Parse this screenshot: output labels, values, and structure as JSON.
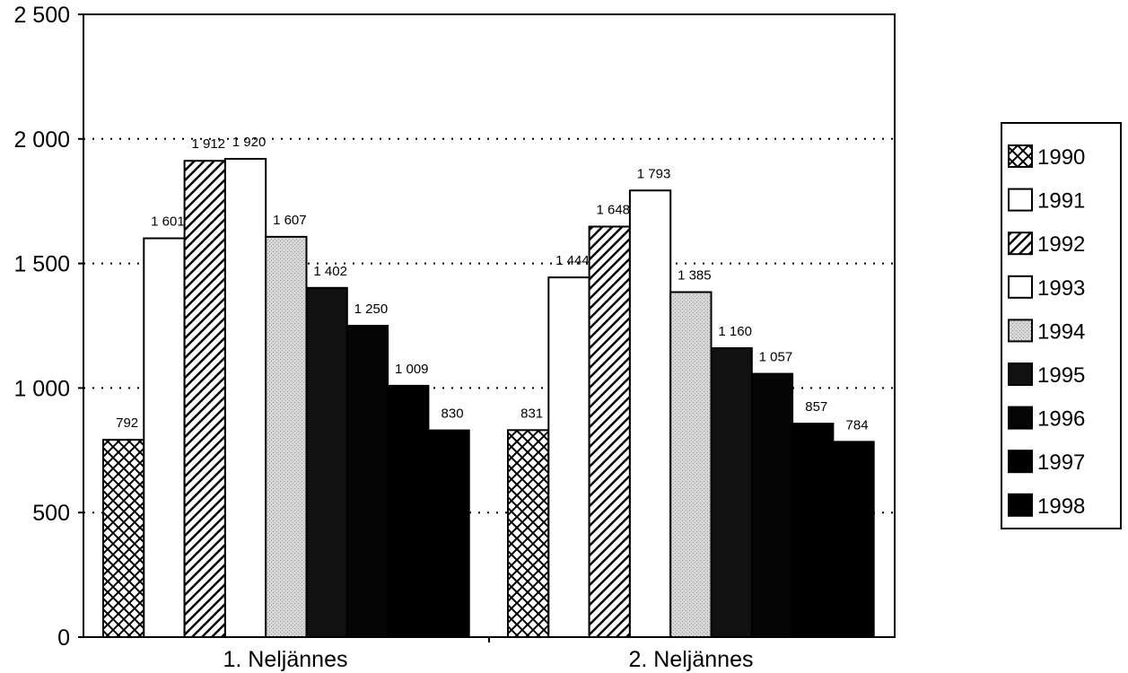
{
  "chart_data": {
    "type": "bar",
    "categories": [
      "1. Neljännes",
      "2. Neljännes"
    ],
    "series": [
      {
        "name": "1990",
        "values": [
          792,
          831
        ],
        "pattern": "crosshatch",
        "color": "#000000"
      },
      {
        "name": "1991",
        "values": [
          1601,
          1444
        ],
        "pattern": "solid",
        "color": "#ffffff"
      },
      {
        "name": "1992",
        "values": [
          1912,
          1648
        ],
        "pattern": "diagonal",
        "color": "#000000"
      },
      {
        "name": "1993",
        "values": [
          1920,
          1793
        ],
        "pattern": "solid",
        "color": "#ffffff"
      },
      {
        "name": "1994",
        "values": [
          1607,
          1385
        ],
        "pattern": "dots",
        "color": "#d0d0d0"
      },
      {
        "name": "1995",
        "values": [
          1402,
          1160
        ],
        "pattern": "solid",
        "color": "#111111"
      },
      {
        "name": "1996",
        "values": [
          1250,
          1057
        ],
        "pattern": "solid",
        "color": "#050505"
      },
      {
        "name": "1997",
        "values": [
          1009,
          857
        ],
        "pattern": "solid",
        "color": "#000000"
      },
      {
        "name": "1998",
        "values": [
          830,
          784
        ],
        "pattern": "solid",
        "color": "#000000"
      }
    ],
    "data_labels": [
      [
        "792",
        "831"
      ],
      [
        "1 601",
        "1 444"
      ],
      [
        "1 912",
        "1 648"
      ],
      [
        "1 920",
        "1 793"
      ],
      [
        "1 607",
        "1 385"
      ],
      [
        "1 402",
        "1 160"
      ],
      [
        "1 250",
        "1 057"
      ],
      [
        "1 009",
        "857"
      ],
      [
        "830",
        "784"
      ]
    ],
    "y_ticks": [
      0,
      500,
      1000,
      1500,
      2000,
      2500
    ],
    "y_tick_labels": [
      "0",
      "500",
      "1 000",
      "1 500",
      "2 000",
      "2 500"
    ],
    "ylim": [
      0,
      2500
    ],
    "grid": "dotted-horizontal",
    "legend_position": "right",
    "title": "",
    "xlabel": "",
    "ylabel": ""
  }
}
